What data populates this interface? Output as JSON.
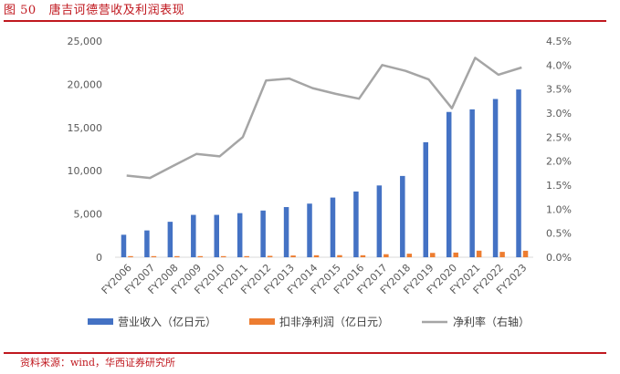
{
  "header": {
    "figure_label": "图 50",
    "title": "唐吉诃德营收及利润表现"
  },
  "footer": {
    "source": "资料来源：wind，华西证券研究所"
  },
  "colors": {
    "accent_red": "#c0181f",
    "revenue": "#4472c4",
    "profit": "#ed7d31",
    "margin": "#a5a5a5"
  },
  "chart_data": {
    "type": "bar",
    "categories": [
      "FY2006",
      "FY2007",
      "FY2008",
      "FY2009",
      "FY2010",
      "FY2011",
      "FY2012",
      "FY2013",
      "FY2014",
      "FY2015",
      "FY2016",
      "FY2017",
      "FY2018",
      "FY2019",
      "FY2020",
      "FY2021",
      "FY2022",
      "FY2023"
    ],
    "series": [
      {
        "name": "营业收入（亿日元）",
        "type": "bar",
        "axis": "left",
        "values": [
          2600,
          3100,
          4100,
          4900,
          4900,
          5100,
          5400,
          5800,
          6200,
          6900,
          7600,
          8300,
          9400,
          13300,
          16800,
          17100,
          18300,
          19400
        ]
      },
      {
        "name": "扣非净利润（亿日元）",
        "type": "bar",
        "axis": "left",
        "values": [
          40,
          50,
          60,
          90,
          90,
          110,
          160,
          200,
          230,
          240,
          230,
          350,
          410,
          500,
          540,
          760,
          620,
          750
        ]
      },
      {
        "name": "净利率（右轴）",
        "type": "line",
        "axis": "right",
        "values": [
          0.017,
          0.0165,
          0.019,
          0.0215,
          0.021,
          0.025,
          0.0368,
          0.0372,
          0.0352,
          0.034,
          0.033,
          0.04,
          0.0388,
          0.037,
          0.031,
          0.0415,
          0.038,
          0.0395
        ]
      }
    ],
    "left_axis": {
      "min": 0,
      "max": 25000,
      "ticks": [
        "0",
        "5,000",
        "10,000",
        "15,000",
        "20,000",
        "25,000"
      ]
    },
    "right_axis": {
      "min": 0,
      "max": 0.045,
      "ticks": [
        "0.0%",
        "0.5%",
        "1.0%",
        "1.5%",
        "2.0%",
        "2.5%",
        "3.0%",
        "3.5%",
        "4.0%",
        "4.5%"
      ]
    },
    "grid": false,
    "legend_position": "bottom"
  }
}
